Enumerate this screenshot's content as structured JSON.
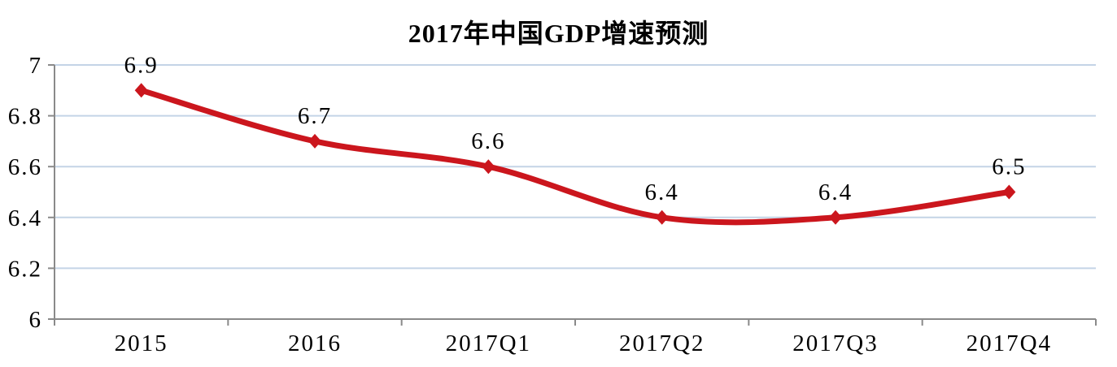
{
  "chart_data": {
    "type": "line",
    "title": "2017年中国GDP增速预测",
    "categories": [
      "2015",
      "2016",
      "2017Q1",
      "2017Q2",
      "2017Q3",
      "2017Q4"
    ],
    "values": [
      6.9,
      6.7,
      6.6,
      6.4,
      6.4,
      6.5
    ],
    "point_labels": [
      "6.9",
      "6.7",
      "6.6",
      "6.4",
      "6.4",
      "6.5"
    ],
    "xlabel": "",
    "ylabel": "",
    "ylim": [
      6,
      7
    ],
    "ytick_values": [
      6,
      6.2,
      6.4,
      6.6,
      6.8,
      7
    ],
    "ytick_labels": [
      "6",
      "6.2",
      "6.4",
      "6.6",
      "6.8",
      "7"
    ],
    "grid": true,
    "legend_position": "none",
    "line_smooth": true,
    "marker": "diamond",
    "colors": {
      "series": "#CB161D",
      "gridline": "#C4D4E6",
      "axis": "#8A8A8A",
      "text": "#000000"
    }
  }
}
